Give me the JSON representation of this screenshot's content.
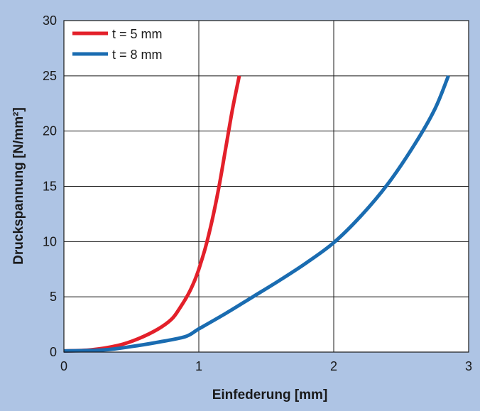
{
  "chart_data": {
    "type": "line",
    "xlabel": "Einfederung [mm]",
    "ylabel": "Druckspannung [N/mm²]",
    "xlim": [
      0,
      3
    ],
    "ylim": [
      0,
      30
    ],
    "x_ticks": [
      "0",
      "1",
      "2",
      "3"
    ],
    "y_ticks": [
      "0",
      "5",
      "10",
      "15",
      "20",
      "25",
      "30"
    ],
    "grid": true,
    "legend_position": "top-left",
    "background_color": "#aec4e4",
    "series": [
      {
        "name": "t = 5 mm",
        "color": "#e3202a",
        "points": [
          [
            0,
            0.1
          ],
          [
            0.2,
            0.2
          ],
          [
            0.4,
            0.6
          ],
          [
            0.55,
            1.2
          ],
          [
            0.7,
            2.1
          ],
          [
            0.8,
            3.0
          ],
          [
            0.86,
            4.0
          ],
          [
            0.92,
            5.2
          ],
          [
            0.97,
            6.5
          ],
          [
            1.0,
            7.5
          ],
          [
            1.05,
            9.5
          ],
          [
            1.1,
            12.0
          ],
          [
            1.15,
            15.0
          ],
          [
            1.2,
            18.5
          ],
          [
            1.25,
            22.0
          ],
          [
            1.3,
            25.0
          ]
        ]
      },
      {
        "name": "t = 8 mm",
        "color": "#1a6cb1",
        "points": [
          [
            0,
            0.1
          ],
          [
            0.3,
            0.2
          ],
          [
            0.5,
            0.5
          ],
          [
            0.7,
            0.9
          ],
          [
            0.9,
            1.4
          ],
          [
            1.0,
            2.1
          ],
          [
            1.2,
            3.5
          ],
          [
            1.4,
            5.0
          ],
          [
            1.6,
            6.5
          ],
          [
            1.8,
            8.1
          ],
          [
            2.0,
            9.9
          ],
          [
            2.2,
            12.3
          ],
          [
            2.4,
            15.2
          ],
          [
            2.6,
            18.8
          ],
          [
            2.75,
            22.0
          ],
          [
            2.85,
            25.0
          ]
        ]
      }
    ]
  }
}
